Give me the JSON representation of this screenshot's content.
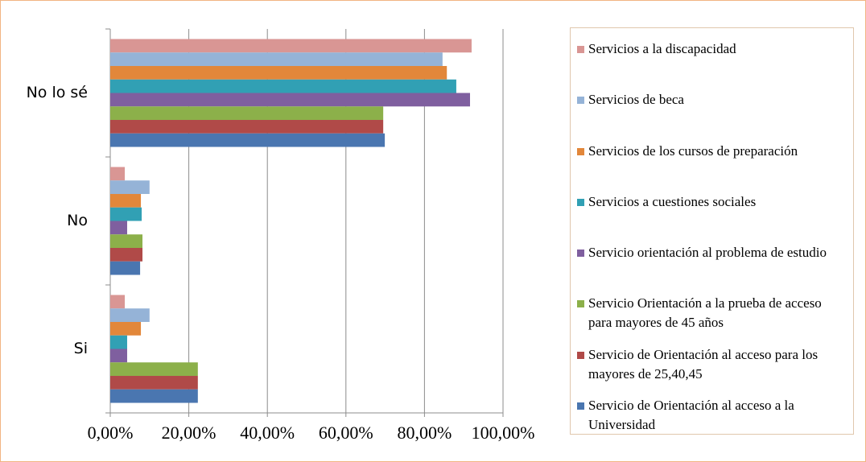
{
  "chart_data": {
    "type": "bar",
    "orientation": "horizontal",
    "categories": [
      "No lo sé",
      "No",
      "Si"
    ],
    "series": [
      {
        "name": "Servicios a la discapacidad",
        "color": "#d99694",
        "values": [
          92.0,
          3.7,
          3.7
        ]
      },
      {
        "name": "Servicios de beca",
        "color": "#95b3d7",
        "values": [
          84.6,
          10.0,
          10.0
        ]
      },
      {
        "name": "Servicios de los cursos de preparación",
        "color": "#e2873a",
        "values": [
          85.7,
          7.8,
          7.8
        ]
      },
      {
        "name": "Servicios a cuestiones sociales",
        "color": "#31a0b4",
        "values": [
          88.1,
          8.0,
          4.3
        ]
      },
      {
        "name": "Servicio orientación al problema de estudio",
        "color": "#7f5f9f",
        "values": [
          91.6,
          4.3,
          4.3
        ]
      },
      {
        "name": "Servicio Orientación a la prueba de acceso para mayores de 45 años",
        "color": "#8cb04a",
        "values": [
          69.5,
          8.2,
          22.3
        ]
      },
      {
        "name": "Servicio de Orientación al acceso para los mayores de 25,40,45",
        "color": "#b04a48",
        "values": [
          69.5,
          8.2,
          22.3
        ]
      },
      {
        "name": "Servicio de Orientación al acceso a la Universidad",
        "color": "#4a76b0",
        "values": [
          69.9,
          7.6,
          22.3
        ]
      }
    ],
    "xlim": [
      0,
      100
    ],
    "xticks": [
      {
        "value": 0,
        "label": "0,00%"
      },
      {
        "value": 20,
        "label": "20,00%"
      },
      {
        "value": 40,
        "label": "40,00%"
      },
      {
        "value": 60,
        "label": "60,00%"
      },
      {
        "value": 80,
        "label": "80,00%"
      },
      {
        "value": 100,
        "label": "100,00%"
      }
    ],
    "grid": true,
    "legend": "right"
  }
}
